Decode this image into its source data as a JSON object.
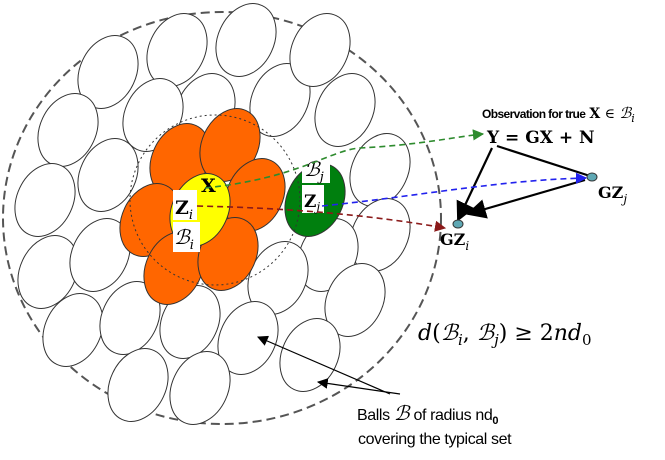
{
  "colors": {
    "orange": "#FF6600",
    "yellow": "#FFFF00",
    "green": "#007F0E",
    "green_arrow": "#2E8B2E",
    "blue_arrow": "#2222EE",
    "red_arrow": "#8B1A1A",
    "point": "#5FA8B4"
  },
  "labels": {
    "x": "X",
    "z_i_main": "Z",
    "z_i_sub": "i",
    "b_i_main": "ℬ",
    "b_i_sub": "i",
    "z_j_main": "Z",
    "z_j_sub": "j",
    "b_j_main": "ℬ",
    "b_j_sub": "j",
    "y_eq": "Y = GX + N",
    "gz_j_main": "GZ",
    "gz_j_sub": "j",
    "gz_i_main": "GZ",
    "gz_i_sub": "i"
  },
  "observation": {
    "prefix": "Observation for true",
    "math_x": "X",
    "in": " ∈ ",
    "set": "ℬ",
    "sub": "i"
  },
  "distance": {
    "d": "d",
    "open": "(",
    "bi": "ℬ",
    "i": "i",
    "comma": ", ",
    "bj": "ℬ",
    "j": "j",
    "rest": ") ≥ 2",
    "n": "n",
    "d0": "d",
    "zero": "0"
  },
  "caption": {
    "line1_a": "Balls ",
    "line1_b": "ℬ",
    "line1_c": " of radius nd",
    "line1_sub": "0",
    "line2": "covering the typical set"
  }
}
